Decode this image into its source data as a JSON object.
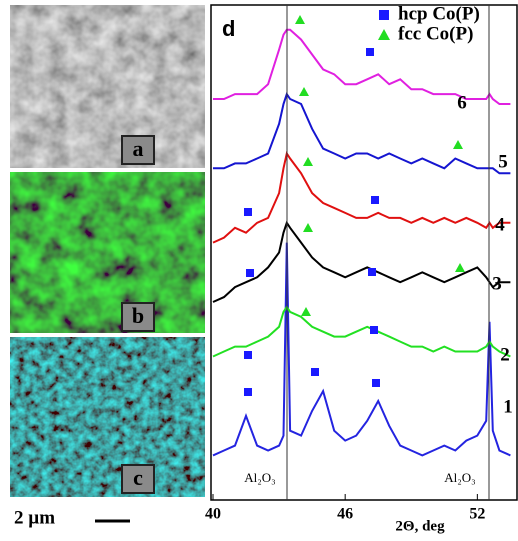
{
  "panels": [
    {
      "label": "a"
    },
    {
      "label": "b"
    },
    {
      "label": "c"
    }
  ],
  "scale_bar": "2 µm",
  "chart_data": {
    "type": "line",
    "panel_label": "d",
    "x": [
      40,
      40.5,
      41,
      41.5,
      42,
      42.5,
      43,
      43.2,
      43.35,
      43.5,
      44,
      44.5,
      45,
      45.5,
      46,
      46.5,
      47,
      47.5,
      48,
      48.5,
      49,
      49.5,
      50,
      50.5,
      51,
      51.5,
      52,
      52.4,
      52.55,
      52.7,
      53,
      53.5
    ],
    "xlim": [
      40,
      53.8
    ],
    "xticks": [
      40,
      46,
      52
    ],
    "ylim": [
      0,
      100
    ],
    "xlabel": "2Θ, deg",
    "series": [
      {
        "name": "1",
        "color": "#2424e0",
        "values": [
          9,
          10,
          11,
          17,
          11,
          10,
          11,
          13,
          52,
          14,
          13,
          18,
          22,
          14,
          12,
          13,
          16,
          20,
          15,
          11,
          10,
          9,
          10,
          11,
          10,
          12,
          13,
          16,
          36,
          14,
          10,
          9
        ]
      },
      {
        "name": "2",
        "color": "#22e022",
        "values": [
          29,
          30,
          31,
          31,
          32,
          33,
          35,
          38,
          39,
          38,
          37,
          35,
          34,
          33,
          33,
          34,
          35,
          34,
          33,
          32,
          31,
          31,
          30,
          31,
          30,
          30,
          30,
          31,
          32,
          31,
          30,
          29
        ]
      },
      {
        "name": "3",
        "color": "#000000",
        "values": [
          40,
          41,
          43,
          44,
          45,
          47,
          50,
          54,
          56,
          55,
          52,
          49,
          47,
          46,
          45,
          46,
          47,
          46,
          45,
          44,
          45,
          46,
          45,
          44,
          45,
          46,
          47,
          45,
          44,
          43,
          44,
          44
        ]
      },
      {
        "name": "4",
        "color": "#e01010",
        "values": [
          52,
          53,
          55,
          54,
          56,
          57,
          62,
          67,
          70,
          69,
          66,
          62,
          60,
          59,
          58,
          57,
          57,
          58,
          57,
          57,
          56,
          57,
          56,
          57,
          56,
          57,
          56,
          55,
          56,
          55,
          56,
          56
        ]
      },
      {
        "name": "5",
        "color": "#1515d0",
        "values": [
          67,
          67,
          68,
          68,
          69,
          70,
          76,
          80,
          82,
          81,
          80,
          75,
          71,
          70,
          69,
          70,
          70,
          69,
          70,
          69,
          68,
          69,
          68,
          67,
          69,
          68,
          67,
          67,
          67,
          67,
          66,
          66
        ]
      },
      {
        "name": "6",
        "color": "#e020e0",
        "values": [
          81,
          81,
          82,
          82,
          82,
          84,
          91,
          94,
          95,
          95,
          93,
          90,
          87,
          86,
          84,
          84,
          85,
          86,
          84,
          85,
          83,
          83,
          82,
          82,
          82,
          81,
          81,
          81,
          82,
          81,
          80,
          80
        ]
      }
    ],
    "legend": [
      {
        "name": "hcp Co(P)",
        "marker": "square",
        "color": "#1a1aff"
      },
      {
        "name": "fcc Co(P)",
        "marker": "triangle",
        "color": "#22dd22"
      }
    ],
    "annotations": [
      "Al₂O₃",
      "Al₂O₃"
    ]
  }
}
